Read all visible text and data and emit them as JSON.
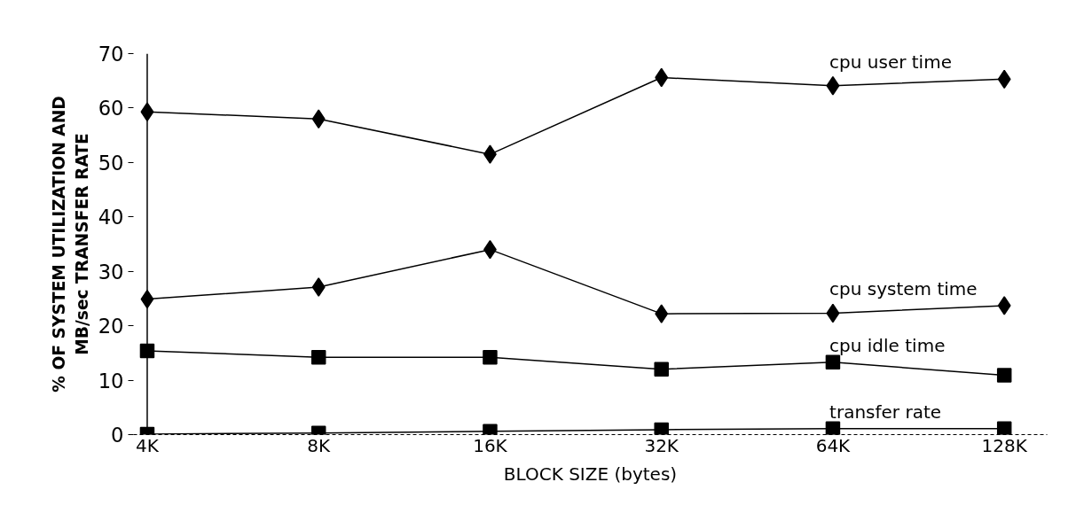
{
  "chart_data": {
    "type": "line",
    "xlabel": "BLOCK SIZE (bytes)",
    "ylabel": "% OF SYSTEM UTILIZATION AND\nMB/sec TRANSFER RATE",
    "categories": [
      "4K",
      "8K",
      "16K",
      "32K",
      "64K",
      "128K"
    ],
    "series": [
      {
        "name": "cpu user time",
        "color": "#000000",
        "marker": "diamond",
        "values": [
          59.3,
          58.0,
          51.5,
          65.6,
          64.1,
          65.3
        ]
      },
      {
        "name": "cpu system time",
        "color": "#000000",
        "marker": "diamond",
        "values": [
          24.9,
          27.1,
          34.0,
          22.2,
          22.3,
          23.7
        ]
      },
      {
        "name": "cpu idle time",
        "color": "#000000",
        "marker": "square",
        "values": [
          15.4,
          14.2,
          14.2,
          12.0,
          13.3,
          10.9
        ]
      },
      {
        "name": "transfer rate",
        "color": "#000000",
        "marker": "square",
        "values": [
          0.1,
          0.3,
          0.6,
          0.9,
          1.1,
          1.1
        ]
      }
    ],
    "ylim": [
      0,
      70
    ],
    "yticks": [
      0,
      10,
      20,
      30,
      40,
      50,
      60,
      70
    ],
    "grid": false,
    "line_style": "solid"
  }
}
